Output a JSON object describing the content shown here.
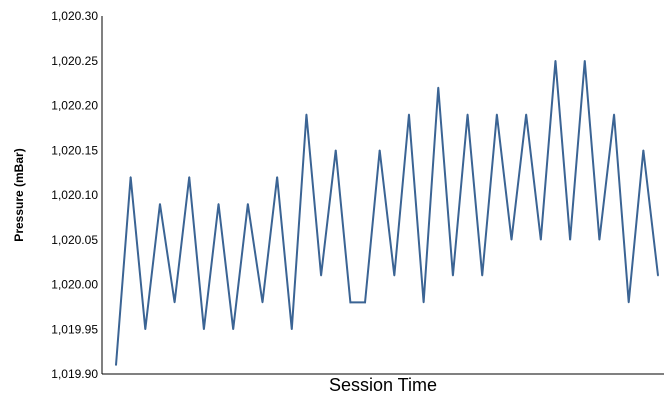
{
  "chart_data": {
    "type": "line",
    "title": "",
    "xlabel": "Session Time",
    "ylabel": "Pressure (mBar)",
    "ylim": [
      1019.9,
      1020.3
    ],
    "y_ticks": [
      "1,019.90",
      "1,019.95",
      "1,020.00",
      "1,020.05",
      "1,020.10",
      "1,020.15",
      "1,020.20",
      "1,020.25",
      "1,020.30"
    ],
    "grid": false,
    "legend": "none",
    "series": [
      {
        "color": "#3b6494",
        "values": [
          1019.91,
          1020.12,
          1019.95,
          1020.09,
          1019.98,
          1020.12,
          1019.95,
          1020.09,
          1019.95,
          1020.09,
          1019.98,
          1020.12,
          1019.95,
          1020.19,
          1020.01,
          1020.15,
          1019.98,
          1019.98,
          1020.15,
          1020.01,
          1020.19,
          1019.98,
          1020.22,
          1020.01,
          1020.19,
          1020.01,
          1020.19,
          1020.05,
          1020.19,
          1020.05,
          1020.25,
          1020.05,
          1020.25,
          1020.05,
          1020.19,
          1019.98,
          1020.15,
          1020.01
        ]
      }
    ]
  }
}
